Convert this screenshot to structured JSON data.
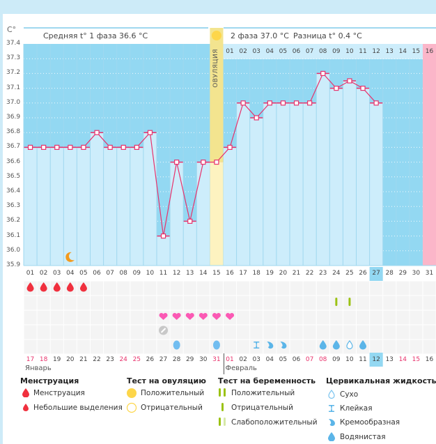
{
  "header": {
    "unit_label": "C°",
    "phase1_label": "Средняя t° 1 фаза",
    "phase1_value": "36.6 °C",
    "phase2_label": "2 фаза",
    "phase2_value": "37.0 °C",
    "diff_label": "Разница t°",
    "diff_value": "0.4 °C",
    "ovulation_label": "ОВУЛЯЦИЯ"
  },
  "colors": {
    "above_bg": "#93d8f2",
    "below_bg": "#cdedfb",
    "line": "#e8316b",
    "ovulation": "#fdf3c0",
    "ovulation_dark": "#f3e48f",
    "period_next": "#fbb6c9",
    "today": "#93d8f2"
  },
  "chart_data": {
    "type": "line",
    "title": "",
    "ylabel": "C°",
    "ylim": [
      35.9,
      37.4
    ],
    "yticks": [
      "37.4",
      "37.3",
      "37.2",
      "37.1",
      "37.0",
      "36.9",
      "36.8",
      "36.7",
      "36.6",
      "36.5",
      "36.4",
      "36.3",
      "36.2",
      "36.1",
      "36.0",
      "35.9"
    ],
    "cycle_days": [
      "01",
      "02",
      "03",
      "04",
      "05",
      "06",
      "07",
      "08",
      "09",
      "10",
      "11",
      "12",
      "13",
      "14",
      "15",
      "16",
      "17",
      "18",
      "19",
      "20",
      "21",
      "22",
      "23",
      "24",
      "25",
      "26",
      "27",
      "28",
      "29",
      "30",
      "31"
    ],
    "post_ovulation_days": [
      "01",
      "02",
      "03",
      "04",
      "05",
      "06",
      "07",
      "08",
      "09",
      "10",
      "11",
      "12",
      "13",
      "14",
      "15",
      "16"
    ],
    "temperatures": [
      36.7,
      36.7,
      36.7,
      36.7,
      36.7,
      36.8,
      36.7,
      36.7,
      36.7,
      36.8,
      36.1,
      36.6,
      36.2,
      36.6,
      36.6,
      36.7,
      37.0,
      36.9,
      37.0,
      37.0,
      37.0,
      37.0,
      37.2,
      37.1,
      37.15,
      37.1,
      37.0,
      null,
      null,
      null,
      null
    ],
    "ovulation_day": 15,
    "today_day": 27,
    "next_period_day": 31,
    "phase1_average": 36.6,
    "phase2_average": 37.0,
    "difference": 0.4,
    "calendar_dates": [
      "17",
      "18",
      "19",
      "20",
      "21",
      "22",
      "23",
      "24",
      "25",
      "26",
      "27",
      "28",
      "29",
      "30",
      "31",
      "01",
      "02",
      "03",
      "04",
      "05",
      "06",
      "07",
      "08",
      "09",
      "10",
      "11",
      "12",
      "13",
      "14",
      "15",
      "16"
    ],
    "weekend_dates_highlight": [
      true,
      true,
      false,
      false,
      false,
      false,
      false,
      true,
      true,
      false,
      false,
      false,
      false,
      false,
      true,
      true,
      false,
      false,
      false,
      false,
      false,
      true,
      true,
      false,
      false,
      false,
      false,
      false,
      true,
      true,
      false
    ],
    "months": [
      {
        "label": "Январь",
        "start_index": 0
      },
      {
        "label": "Февраль",
        "start_index": 15
      }
    ],
    "markers": {
      "sleep_moon_days": [
        4
      ],
      "menstruation_days": [
        1,
        2,
        3,
        4,
        5
      ],
      "pregnancy_test_positive_days": [
        24,
        25
      ],
      "sex_heart_days": [
        11,
        12,
        13,
        14,
        15,
        16
      ],
      "pill_days": [
        11
      ],
      "fluid": [
        {
          "day": 12,
          "type": "egg"
        },
        {
          "day": 15,
          "type": "egg"
        },
        {
          "day": 18,
          "type": "sticky"
        },
        {
          "day": 19,
          "type": "creamy"
        },
        {
          "day": 20,
          "type": "creamy"
        },
        {
          "day": 23,
          "type": "watery"
        },
        {
          "day": 24,
          "type": "watery"
        },
        {
          "day": 25,
          "type": "dry"
        },
        {
          "day": 26,
          "type": "watery"
        }
      ]
    }
  },
  "legend": {
    "menstruation": {
      "title": "Менструация",
      "items": [
        "Менструация",
        "Небольшие выделения"
      ]
    },
    "ovulation_test": {
      "title": "Тест на овуляцию",
      "items": [
        "Положительный",
        "Отрицательный"
      ]
    },
    "pregnancy_test": {
      "title": "Тест на беременность",
      "items": [
        "Положительный",
        "Отрицательный",
        "Слабоположительный"
      ]
    },
    "cervical_fluid": {
      "title": "Цервикальная жидкость",
      "items": [
        "Сухо",
        "Клейкая",
        "Кремообразная",
        "Водянистая"
      ]
    }
  }
}
